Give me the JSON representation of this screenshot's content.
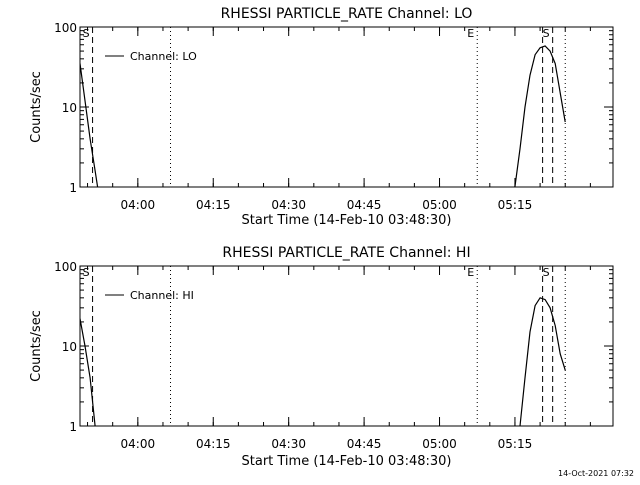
{
  "chart_data": [
    {
      "type": "line",
      "title": "RHESSI PARTICLE_RATE Channel: LO",
      "xlabel": "Start Time (14-Feb-10 03:48:30)",
      "ylabel": "Counts/sec",
      "yscale": "log",
      "ylim": [
        1,
        100
      ],
      "xlim": [
        "03:48:30",
        "05:34:30"
      ],
      "x_ticks": [
        "04:00",
        "04:15",
        "04:30",
        "04:45",
        "05:00",
        "05:15"
      ],
      "y_ticks": [
        "1",
        "10",
        "100"
      ],
      "legend": {
        "position": "top-left",
        "entries": [
          "Channel: LO"
        ]
      },
      "series": [
        {
          "name": "Channel: LO",
          "segments": [
            {
              "x": [
                "03:48:30",
                "03:49:30",
                "03:50:30",
                "03:51:30",
                "03:52:00"
              ],
              "y": [
                35,
                12,
                4,
                1.6,
                1
              ]
            },
            {
              "x": [
                "05:15:00",
                "05:16:00",
                "05:17:00",
                "05:18:00",
                "05:19:00",
                "05:20:00",
                "05:21:00",
                "05:22:00",
                "05:23:00",
                "05:24:00",
                "05:25:00"
              ],
              "y": [
                1,
                3,
                10,
                25,
                45,
                55,
                58,
                50,
                35,
                15,
                6.5
              ]
            }
          ]
        }
      ],
      "markers": [
        {
          "style": "dashed",
          "x": "03:51:00",
          "label": "S"
        },
        {
          "style": "dotted",
          "x": "04:06:30",
          "label": ""
        },
        {
          "style": "dotted",
          "x": "05:07:30",
          "label": "E"
        },
        {
          "style": "dashed",
          "x": "05:20:30",
          "label": ""
        },
        {
          "style": "dashed",
          "x": "05:22:30",
          "label": "S"
        },
        {
          "style": "dotted",
          "x": "05:25:00",
          "label": ""
        }
      ]
    },
    {
      "type": "line",
      "title": "RHESSI PARTICLE_RATE Channel: HI",
      "xlabel": "Start Time (14-Feb-10 03:48:30)",
      "ylabel": "Counts/sec",
      "yscale": "log",
      "ylim": [
        1,
        100
      ],
      "xlim": [
        "03:48:30",
        "05:34:30"
      ],
      "x_ticks": [
        "04:00",
        "04:15",
        "04:30",
        "04:45",
        "05:00",
        "05:15"
      ],
      "y_ticks": [
        "1",
        "10",
        "100"
      ],
      "legend": {
        "position": "top-left",
        "entries": [
          "Channel: HI"
        ]
      },
      "series": [
        {
          "name": "Channel: HI",
          "segments": [
            {
              "x": [
                "03:48:30",
                "03:49:30",
                "03:50:30",
                "03:51:00",
                "03:51:30"
              ],
              "y": [
                22,
                10,
                4,
                2,
                1
              ]
            },
            {
              "x": [
                "05:16:00",
                "05:17:00",
                "05:18:00",
                "05:19:00",
                "05:20:00",
                "05:21:00",
                "05:22:00",
                "05:23:00",
                "05:24:00",
                "05:25:00"
              ],
              "y": [
                1,
                4,
                15,
                32,
                40,
                38,
                30,
                18,
                8,
                5
              ]
            }
          ]
        }
      ],
      "markers": [
        {
          "style": "dashed",
          "x": "03:51:00",
          "label": "S"
        },
        {
          "style": "dotted",
          "x": "04:06:30",
          "label": ""
        },
        {
          "style": "dotted",
          "x": "05:07:30",
          "label": "E"
        },
        {
          "style": "dashed",
          "x": "05:20:30",
          "label": ""
        },
        {
          "style": "dashed",
          "x": "05:22:30",
          "label": "S"
        },
        {
          "style": "dotted",
          "x": "05:25:00",
          "label": ""
        }
      ]
    }
  ],
  "footer": {
    "timestamp": "14-Oct-2021 07:32"
  }
}
